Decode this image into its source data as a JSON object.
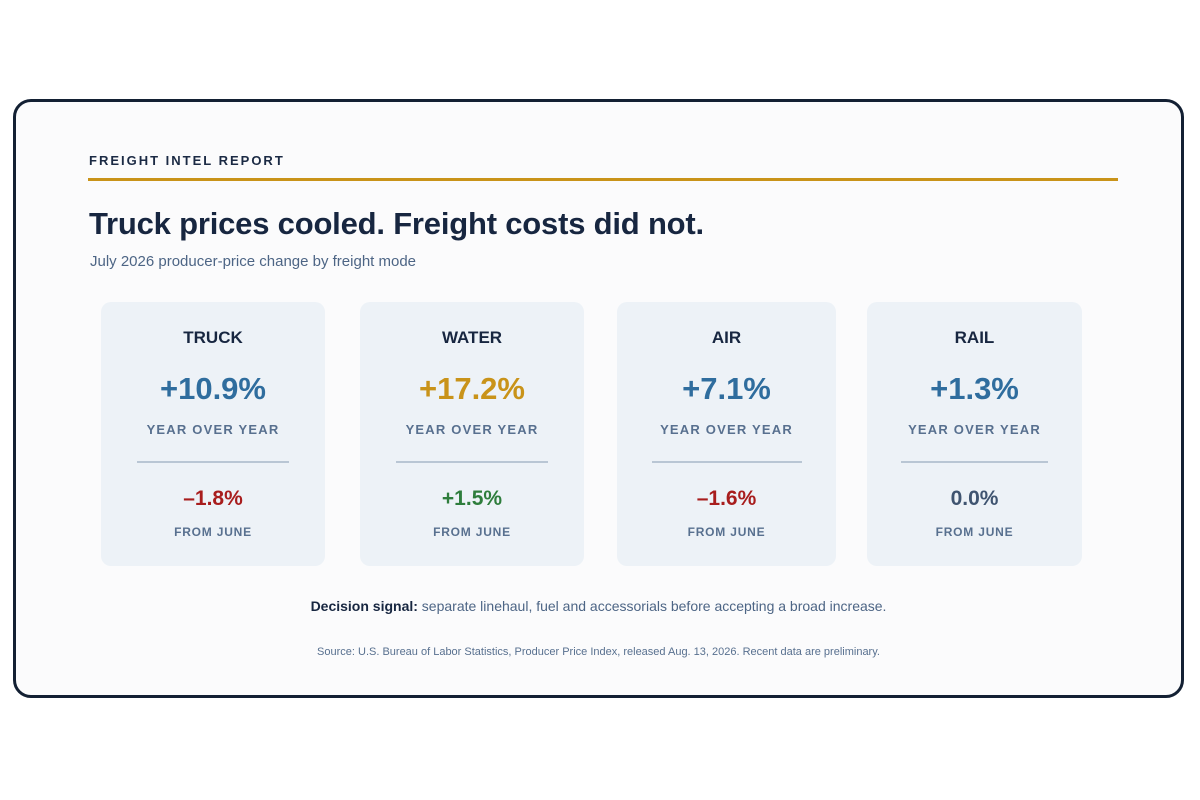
{
  "report": {
    "kicker": "FREIGHT INTEL REPORT",
    "headline": "Truck prices cooled. Freight costs did not.",
    "subhead": "July 2026 producer-price change by freight mode"
  },
  "cards": [
    {
      "mode": "TRUCK",
      "yoy": "+10.9%",
      "yoy_label": "YEAR OVER YEAR",
      "mom": "–1.8%",
      "mom_label": "FROM JUNE",
      "yoy_color": "#2f6d9e",
      "mom_color": "#a81d1d"
    },
    {
      "mode": "WATER",
      "yoy": "+17.2%",
      "yoy_label": "YEAR OVER YEAR",
      "mom": "+1.5%",
      "mom_label": "FROM JUNE",
      "yoy_color": "#c99319",
      "mom_color": "#2e7d3c"
    },
    {
      "mode": "AIR",
      "yoy": "+7.1%",
      "yoy_label": "YEAR OVER YEAR",
      "mom": "–1.6%",
      "mom_label": "FROM JUNE",
      "yoy_color": "#2f6d9e",
      "mom_color": "#a81d1d"
    },
    {
      "mode": "RAIL",
      "yoy": "+1.3%",
      "yoy_label": "YEAR OVER YEAR",
      "mom": "0.0%",
      "mom_label": "FROM JUNE",
      "yoy_color": "#2f6d9e",
      "mom_color": "#3f5470"
    }
  ],
  "decision": {
    "label": "Decision signal:",
    "text": " separate linehaul, fuel and accessorials before accepting a broad increase."
  },
  "source": "Source: U.S. Bureau of Labor Statistics, Producer Price Index, released Aug. 13, 2026. Recent data are preliminary.",
  "colors": {
    "accent_rule": "#c99319",
    "frame_border": "#132033",
    "card_bg": "#edf2f7"
  }
}
